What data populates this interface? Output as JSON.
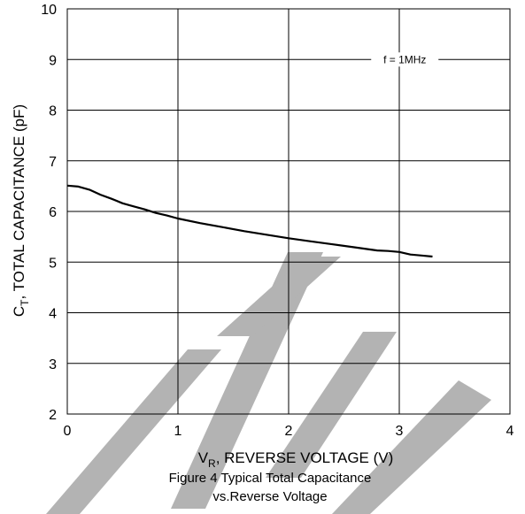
{
  "chart_data": {
    "type": "line",
    "xlabel_main": "V",
    "xlabel_sub": "R",
    "xlabel_rest": ", REVERSE VOLTAGE (V)",
    "ylabel_main": "C",
    "ylabel_sub": "T",
    "ylabel_rest": ", TOTAL CAPACITANCE (pF)",
    "annotation": "f = 1MHz",
    "caption_line1": "Figure 4 Typical Total Capacitance",
    "caption_line2": "vs.Reverse Voltage",
    "xlim": [
      0,
      4
    ],
    "ylim": [
      2,
      10
    ],
    "x_ticks": [
      "0",
      "1",
      "2",
      "3",
      "4"
    ],
    "y_ticks": [
      "2",
      "3",
      "4",
      "5",
      "6",
      "7",
      "8",
      "9",
      "10"
    ],
    "grid": true,
    "watermark_color": "#b3b3b3",
    "series": [
      {
        "x": [
          0,
          0.1,
          0.2,
          0.3,
          0.4,
          0.5,
          0.6,
          0.7,
          0.8,
          0.9,
          1.0,
          1.2,
          1.4,
          1.6,
          1.8,
          2.0,
          2.2,
          2.4,
          2.6,
          2.8,
          2.9,
          3.0,
          3.1,
          3.2,
          3.3
        ],
        "y": [
          6.51,
          6.49,
          6.43,
          6.33,
          6.25,
          6.16,
          6.1,
          6.04,
          5.97,
          5.92,
          5.86,
          5.77,
          5.69,
          5.61,
          5.54,
          5.47,
          5.41,
          5.35,
          5.29,
          5.23,
          5.22,
          5.2,
          5.15,
          5.13,
          5.11
        ]
      }
    ]
  }
}
